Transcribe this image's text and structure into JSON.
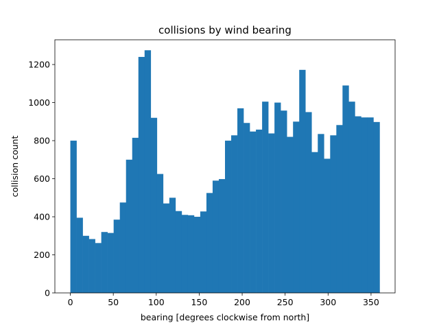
{
  "chart_data": {
    "type": "bar",
    "title": "collisions by wind bearing",
    "xlabel": "bearing [degrees clockwise from north]",
    "ylabel": "collision count",
    "bar_color": "#1f77b4",
    "xlim": [
      -18,
      378
    ],
    "ylim": [
      0,
      1330
    ],
    "xticks": [
      0,
      50,
      100,
      150,
      200,
      250,
      300,
      350
    ],
    "yticks": [
      0,
      200,
      400,
      600,
      800,
      1000,
      1200
    ],
    "bin_width": 7.2,
    "bin_start": 0,
    "values": [
      800,
      395,
      300,
      283,
      262,
      320,
      315,
      385,
      475,
      700,
      815,
      1240,
      1275,
      920,
      625,
      470,
      500,
      430,
      410,
      408,
      400,
      428,
      525,
      590,
      598,
      800,
      828,
      970,
      893,
      848,
      858,
      1005,
      838,
      1000,
      958,
      820,
      900,
      1172,
      950,
      740,
      835,
      705,
      828,
      882,
      1090,
      1005,
      928,
      922,
      922,
      898
    ]
  }
}
